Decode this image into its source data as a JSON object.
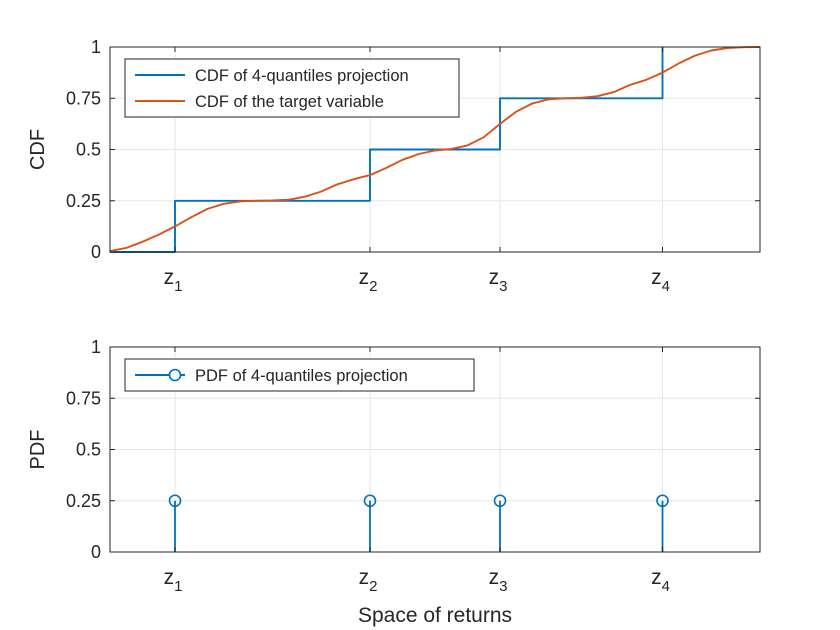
{
  "colors": {
    "projection": "#0072BD",
    "target": "#D95319",
    "grid": "#e6e6e6",
    "axis": "#262626",
    "background": "#ffffff"
  },
  "z_positions": [
    1.0,
    2.2,
    3.0,
    4.0
  ],
  "chart_data": [
    {
      "type": "line",
      "subtype": "step + smooth cdf",
      "ylabel": "CDF",
      "xlabel": "",
      "xlim": [
        0.6,
        4.6
      ],
      "ylim": [
        0,
        1
      ],
      "yticks": [
        0,
        0.25,
        0.5,
        0.75,
        1
      ],
      "ytick_labels": [
        "0",
        "0.25",
        "0.5",
        "0.75",
        "1"
      ],
      "xtick_labels": [
        {
          "base": "z",
          "sub": "1"
        },
        {
          "base": "z",
          "sub": "2"
        },
        {
          "base": "z",
          "sub": "3"
        },
        {
          "base": "z",
          "sub": "4"
        }
      ],
      "grid": true,
      "legend_position": "top-left",
      "series": [
        {
          "name": "CDF of 4-quantiles projection",
          "kind": "step",
          "color": "#0072BD",
          "x": [
            0.6,
            1.0,
            1.0,
            2.2,
            2.2,
            3.0,
            3.0,
            4.0,
            4.0
          ],
          "y": [
            0,
            0,
            0.25,
            0.25,
            0.5,
            0.5,
            0.75,
            0.75,
            1.0
          ]
        },
        {
          "name": "CDF of the target variable",
          "kind": "line",
          "color": "#D95319",
          "x": [
            0.6,
            0.7,
            0.8,
            0.9,
            1.0,
            1.1,
            1.2,
            1.3,
            1.4,
            1.5,
            1.6,
            1.7,
            1.8,
            1.9,
            2.0,
            2.1,
            2.2,
            2.3,
            2.4,
            2.5,
            2.6,
            2.7,
            2.8,
            2.9,
            3.0,
            3.1,
            3.2,
            3.3,
            3.4,
            3.5,
            3.6,
            3.7,
            3.8,
            3.9,
            4.0,
            4.1,
            4.2,
            4.3,
            4.4,
            4.5,
            4.6
          ],
          "y": [
            0.005,
            0.02,
            0.05,
            0.085,
            0.125,
            0.17,
            0.21,
            0.235,
            0.247,
            0.25,
            0.251,
            0.255,
            0.27,
            0.295,
            0.33,
            0.355,
            0.375,
            0.41,
            0.45,
            0.478,
            0.495,
            0.503,
            0.52,
            0.56,
            0.625,
            0.685,
            0.725,
            0.745,
            0.75,
            0.752,
            0.76,
            0.78,
            0.815,
            0.84,
            0.875,
            0.92,
            0.958,
            0.983,
            0.995,
            0.999,
            1.0
          ]
        }
      ]
    },
    {
      "type": "stem",
      "ylabel": "PDF",
      "xlabel": "Space of returns",
      "xlim": [
        0.6,
        4.6
      ],
      "ylim": [
        0,
        1
      ],
      "yticks": [
        0,
        0.25,
        0.5,
        0.75,
        1
      ],
      "ytick_labels": [
        "0",
        "0.25",
        "0.5",
        "0.75",
        "1"
      ],
      "xtick_labels": [
        {
          "base": "z",
          "sub": "1"
        },
        {
          "base": "z",
          "sub": "2"
        },
        {
          "base": "z",
          "sub": "3"
        },
        {
          "base": "z",
          "sub": "4"
        }
      ],
      "grid": true,
      "legend_position": "top-left",
      "series": [
        {
          "name": "PDF of 4-quantiles projection",
          "kind": "stem",
          "color": "#0072BD",
          "x": [
            1.0,
            2.2,
            3.0,
            4.0
          ],
          "y": [
            0.25,
            0.25,
            0.25,
            0.25
          ]
        }
      ]
    }
  ]
}
